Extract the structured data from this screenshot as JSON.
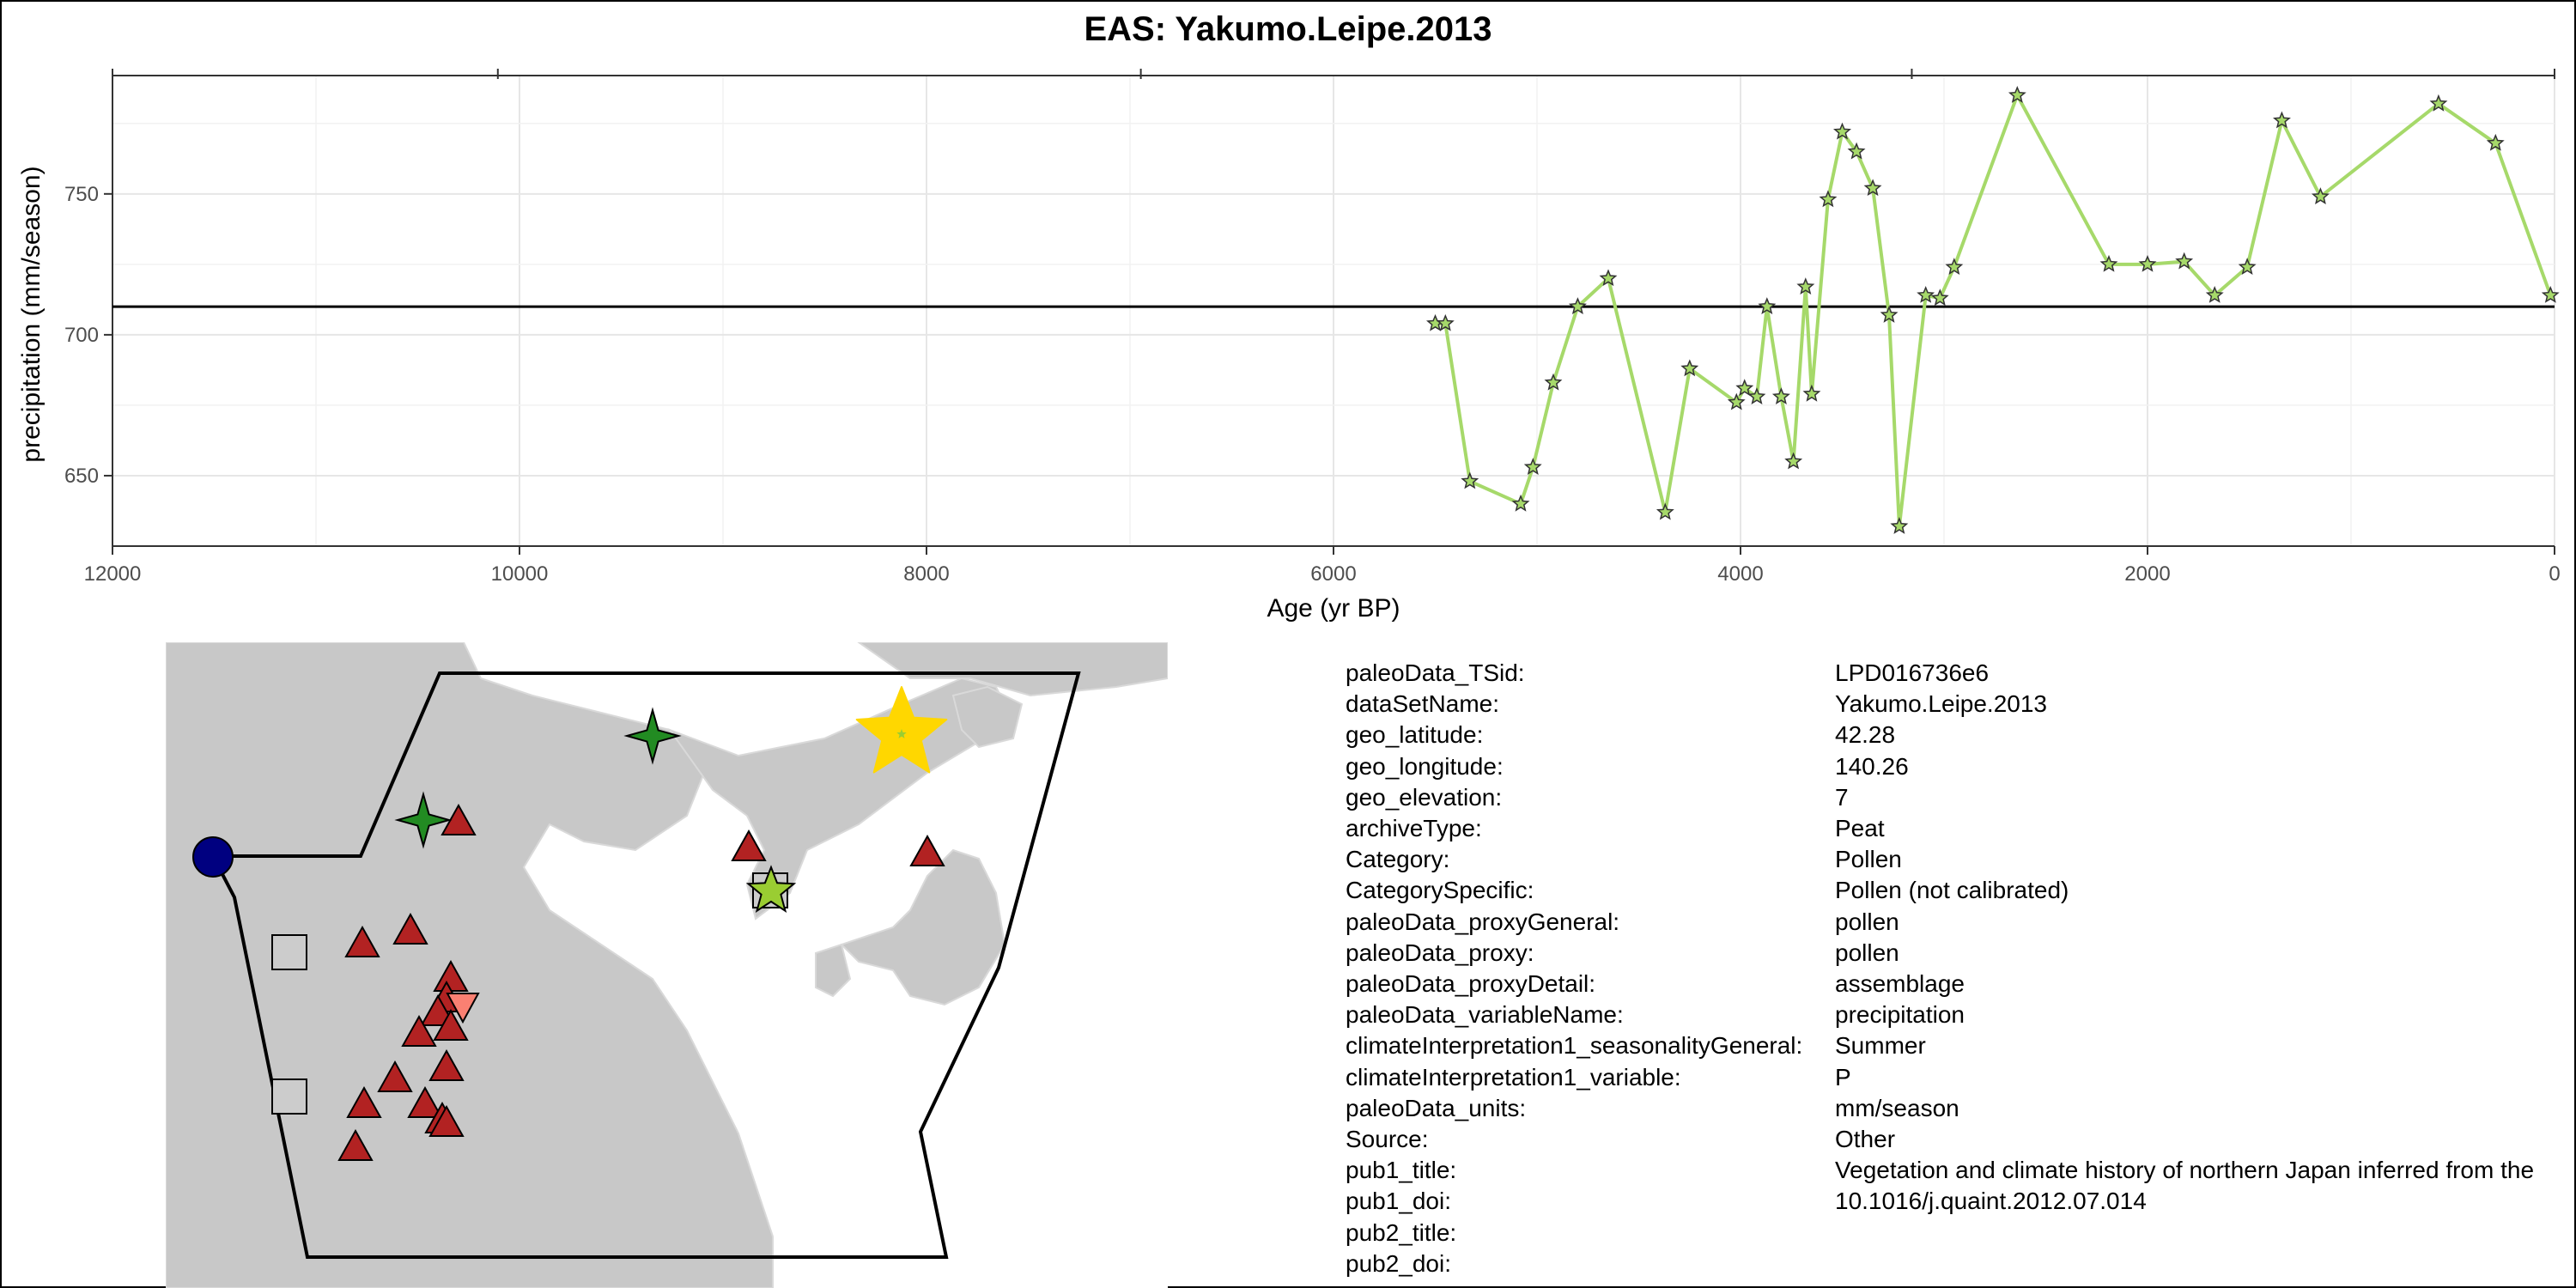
{
  "chart_data": {
    "type": "line",
    "title": "EAS: Yakumo.Leipe.2013",
    "xlabel": "Age (yr BP)",
    "ylabel": "precipitation (mm/season)",
    "xlim": [
      12000,
      0
    ],
    "ylim": [
      625,
      792
    ],
    "x_reversed": true,
    "xticks": [
      12000,
      10000,
      8000,
      6000,
      4000,
      2000,
      0
    ],
    "yticks": [
      650,
      700,
      750
    ],
    "grid": true,
    "reference_line": 710,
    "series": [
      {
        "color": "#a6d96a",
        "marker": "star",
        "x": [
          5500,
          5450,
          5330,
          5080,
          5020,
          4920,
          4800,
          4650,
          4370,
          4250,
          4020,
          3980,
          3920,
          3870,
          3800,
          3740,
          3680,
          3650,
          3570,
          3500,
          3430,
          3350,
          3270,
          3220,
          3090,
          3020,
          2950,
          2640,
          2190,
          2000,
          1820,
          1670,
          1510,
          1340,
          1150,
          570,
          290,
          20
        ],
        "y": [
          704,
          704,
          648,
          640,
          653,
          683,
          710,
          720,
          637,
          688,
          676,
          681,
          678,
          710,
          678,
          655,
          717,
          679,
          748,
          772,
          765,
          752,
          707,
          632,
          714,
          713,
          724,
          785,
          725,
          725,
          726,
          714,
          724,
          776,
          749,
          782,
          768,
          714
        ]
      }
    ]
  },
  "map": {
    "legend_markers": [
      {
        "shape": "star",
        "color": "#ffd700",
        "role": "selected site"
      },
      {
        "shape": "circle",
        "color": "#000080"
      },
      {
        "shape": "triangle",
        "color": "#b22222"
      },
      {
        "shape": "square",
        "color": "#cccccc"
      },
      {
        "shape": "cross-star",
        "color": "#228b22"
      },
      {
        "shape": "star",
        "color": "#9acd32"
      },
      {
        "shape": "triangle-down",
        "color": "#fa8072"
      }
    ],
    "land_color": "#c8c8c8",
    "sea_color": "#ffffff",
    "region_outline_color": "#000000"
  },
  "metadata": [
    {
      "key": "paleoData_TSid:",
      "value": "LPD016736e6"
    },
    {
      "key": "dataSetName:",
      "value": "Yakumo.Leipe.2013"
    },
    {
      "key": "geo_latitude:",
      "value": "42.28"
    },
    {
      "key": "geo_longitude:",
      "value": "140.26"
    },
    {
      "key": "geo_elevation:",
      "value": "7"
    },
    {
      "key": "archiveType:",
      "value": "Peat"
    },
    {
      "key": "Category:",
      "value": "Pollen"
    },
    {
      "key": "CategorySpecific:",
      "value": "Pollen (not calibrated)"
    },
    {
      "key": "paleoData_proxyGeneral:",
      "value": "pollen"
    },
    {
      "key": "paleoData_proxy:",
      "value": "pollen"
    },
    {
      "key": "paleoData_proxyDetail:",
      "value": "assemblage"
    },
    {
      "key": "paleoData_variableName:",
      "value": "precipitation"
    },
    {
      "key": "climateInterpretation1_seasonalityGeneral:",
      "value": "Summer"
    },
    {
      "key": "climateInterpretation1_variable:",
      "value": "P"
    },
    {
      "key": "paleoData_units:",
      "value": "mm/season"
    },
    {
      "key": "Source:",
      "value": "Other"
    },
    {
      "key": "pub1_title:",
      "value": "Vegetation and climate history of northern Japan inferred from the"
    },
    {
      "key": "pub1_doi:",
      "value": "10.1016/j.quaint.2012.07.014"
    },
    {
      "key": "pub2_title:",
      "value": ""
    },
    {
      "key": "pub2_doi:",
      "value": ""
    }
  ]
}
